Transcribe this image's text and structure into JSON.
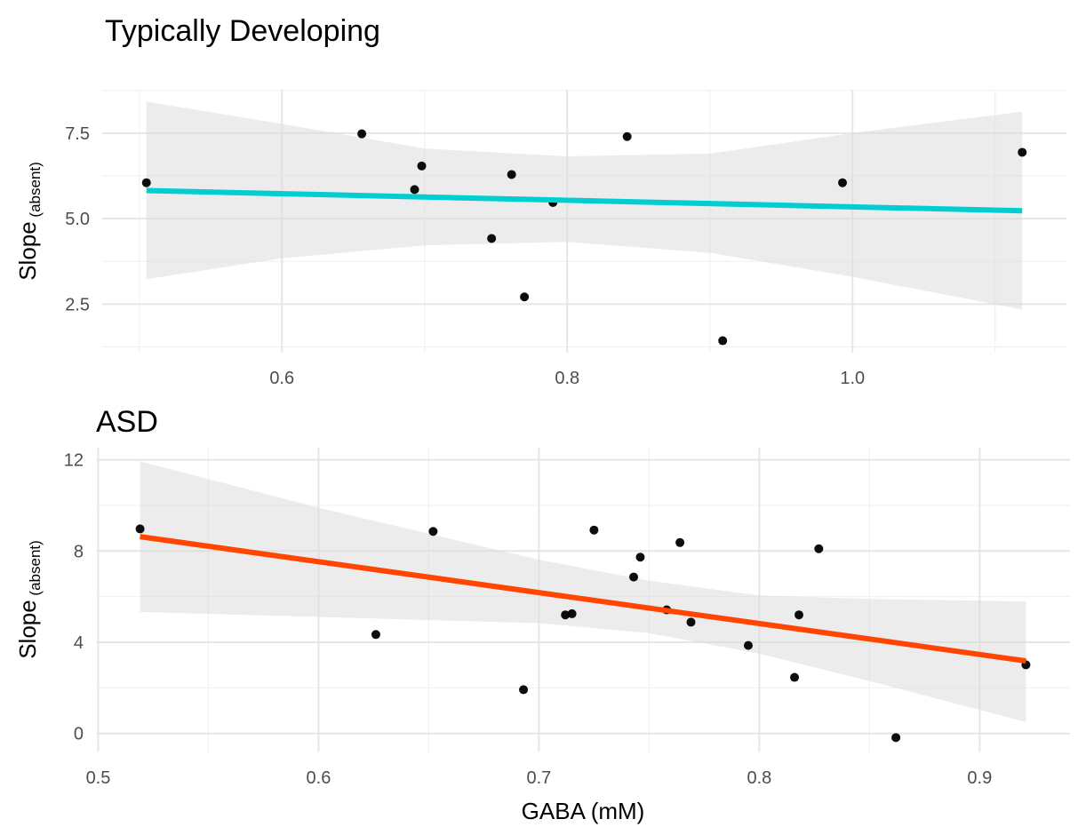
{
  "chart_data": [
    {
      "type": "scatter",
      "title": "Typically Developing",
      "xlabel": "",
      "ylabel": "Slope",
      "ylabel_subscript": "(absent)",
      "xlim": [
        0.474,
        1.15
      ],
      "ylim": [
        1.08,
        8.77
      ],
      "xticks": [
        0.6,
        0.8,
        1.0
      ],
      "xtick_labels": [
        "0.6",
        "0.8",
        "1.0"
      ],
      "xminor": [
        0.5,
        0.7,
        0.9,
        1.1
      ],
      "yticks": [
        2.5,
        5.0,
        7.5
      ],
      "ytick_labels": [
        "2.5",
        "5.0",
        "7.5"
      ],
      "yminor": [
        1.25,
        3.75,
        6.25,
        8.75
      ],
      "grid": true,
      "line_color": "#00CED1",
      "points": [
        [
          0.505,
          6.05
        ],
        [
          0.656,
          7.48
        ],
        [
          0.698,
          6.54
        ],
        [
          0.693,
          5.85
        ],
        [
          0.761,
          6.29
        ],
        [
          0.747,
          4.42
        ],
        [
          0.79,
          5.47
        ],
        [
          0.77,
          2.71
        ],
        [
          0.842,
          7.4
        ],
        [
          0.909,
          1.43
        ],
        [
          0.993,
          6.05
        ],
        [
          1.119,
          6.94
        ]
      ],
      "fit_line": [
        [
          0.505,
          5.82
        ],
        [
          1.119,
          5.23
        ]
      ],
      "ribbon": {
        "x": [
          0.505,
          0.6,
          0.7,
          0.8,
          0.9,
          1.0,
          1.119
        ],
        "lower": [
          3.23,
          3.84,
          4.22,
          4.32,
          4.0,
          3.3,
          2.34
        ],
        "upper": [
          8.42,
          7.77,
          7.05,
          6.82,
          6.9,
          7.5,
          8.13
        ]
      }
    },
    {
      "type": "scatter",
      "title": "ASD",
      "xlabel": "GABA (mM)",
      "ylabel": "Slope",
      "ylabel_subscript": "(absent)",
      "xlim": [
        0.499,
        0.941
      ],
      "ylim": [
        -0.79,
        12.53
      ],
      "xticks": [
        0.5,
        0.6,
        0.7,
        0.8,
        0.9
      ],
      "xtick_labels": [
        "0.5",
        "0.6",
        "0.7",
        "0.8",
        "0.9"
      ],
      "xminor": [
        0.55,
        0.65,
        0.75,
        0.85
      ],
      "yticks": [
        0,
        4,
        8,
        12
      ],
      "ytick_labels": [
        "0",
        "4",
        "8",
        "12"
      ],
      "yminor": [
        2,
        6,
        10
      ],
      "grid": true,
      "line_color": "#FF4500",
      "points": [
        [
          0.519,
          8.97
        ],
        [
          0.652,
          8.86
        ],
        [
          0.626,
          4.34
        ],
        [
          0.693,
          1.92
        ],
        [
          0.712,
          5.2
        ],
        [
          0.715,
          5.25
        ],
        [
          0.725,
          8.92
        ],
        [
          0.746,
          7.73
        ],
        [
          0.743,
          6.86
        ],
        [
          0.764,
          8.37
        ],
        [
          0.758,
          5.42
        ],
        [
          0.769,
          4.88
        ],
        [
          0.795,
          3.86
        ],
        [
          0.827,
          8.1
        ],
        [
          0.818,
          5.2
        ],
        [
          0.816,
          2.46
        ],
        [
          0.862,
          -0.18
        ],
        [
          0.921,
          3.01
        ]
      ],
      "fit_line": [
        [
          0.519,
          8.63
        ],
        [
          0.921,
          3.18
        ]
      ],
      "ribbon": {
        "x": [
          0.519,
          0.6,
          0.7,
          0.75,
          0.8,
          0.85,
          0.921
        ],
        "lower": [
          5.33,
          5.11,
          4.84,
          4.4,
          3.5,
          2.3,
          0.5
        ],
        "upper": [
          11.93,
          9.9,
          7.62,
          6.7,
          6.05,
          5.9,
          5.79
        ]
      }
    }
  ]
}
